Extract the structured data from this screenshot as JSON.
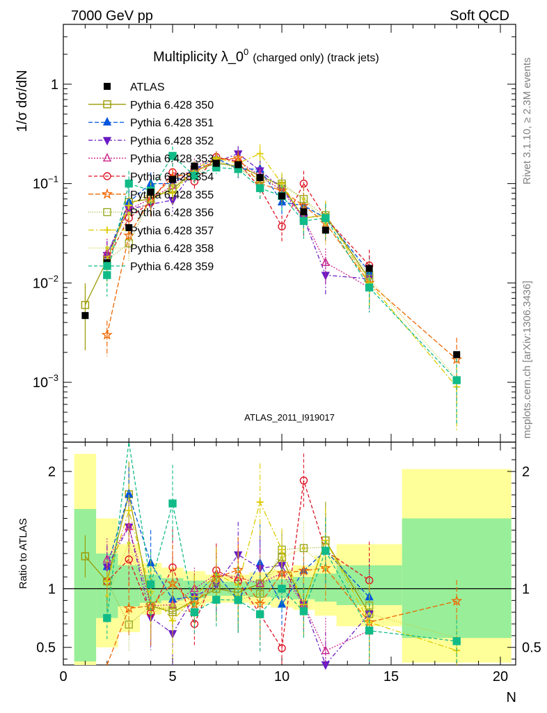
{
  "header": {
    "left": "7000 GeV pp",
    "right": "Soft QCD"
  },
  "side": {
    "top": "Rivet 3.1.10, ≥ 2.3M events",
    "bottom": "mcplots.cern.ch [arXiv:1306.3436]"
  },
  "watermark": "ATLAS_2011_I919017",
  "chart_data": [
    {
      "type": "scatter",
      "panel": "main",
      "title_main": "Multiplicity λ_0",
      "title_sup": "0",
      "title_small": "(charged only) (track jets)",
      "ylabel": "1/σ dσ/dN",
      "yscale": "log",
      "ylim": [
        0.00025,
        4
      ],
      "xlim": [
        0,
        20.7
      ],
      "yticks": [
        {
          "v": 0.001,
          "base": "10",
          "exp": "−3"
        },
        {
          "v": 0.01,
          "base": "10",
          "exp": "−2"
        },
        {
          "v": 0.1,
          "base": "10",
          "exp": "−1"
        },
        {
          "v": 1,
          "base": "1",
          "exp": ""
        }
      ],
      "legend_position": "top-left",
      "atlas": {
        "name": "ATLAS",
        "x": [
          1,
          2,
          3,
          4,
          5,
          6,
          7,
          8,
          9,
          10,
          11,
          12,
          14,
          18
        ],
        "y": [
          0.0047,
          0.016,
          0.036,
          0.082,
          0.11,
          0.15,
          0.16,
          0.155,
          0.115,
          0.075,
          0.052,
          0.034,
          0.014,
          0.0019
        ]
      },
      "series": [
        {
          "name": "Pythia 6.428 350",
          "color": "#999900",
          "marker": "square-open",
          "dash": "",
          "y": [
            0.006,
            0.017,
            0.065,
            0.07,
            0.088,
            0.135,
            0.16,
            0.15,
            0.12,
            0.095,
            0.045,
            0.048,
            0.011,
            null
          ]
        },
        {
          "name": "Pythia 6.428 351",
          "color": "#0055dd",
          "marker": "triangle-up",
          "dash": "6,3",
          "y": [
            null,
            0.019,
            0.065,
            0.1,
            0.1,
            0.14,
            0.18,
            0.14,
            0.14,
            0.065,
            0.06,
            0.045,
            0.013,
            null
          ]
        },
        {
          "name": "Pythia 6.428 352",
          "color": "#6a1bc4",
          "marker": "triangle-down",
          "dash": "6,3,2,3",
          "y": [
            null,
            0.019,
            0.055,
            0.062,
            0.068,
            0.14,
            0.165,
            0.2,
            0.135,
            0.09,
            0.045,
            0.012,
            0.011,
            null
          ]
        },
        {
          "name": "Pythia 6.428 353",
          "color": "#cc2288",
          "marker": "triangle-up-open",
          "dash": "2,2",
          "y": [
            null,
            0.02,
            0.055,
            0.07,
            0.095,
            0.15,
            0.18,
            0.17,
            0.12,
            0.085,
            0.045,
            0.016,
            0.009,
            null
          ]
        },
        {
          "name": "Pythia 6.428 354",
          "color": "#dd1122",
          "marker": "circle-open",
          "dash": "5,3",
          "y": [
            null,
            0.017,
            0.045,
            0.065,
            0.13,
            0.105,
            0.185,
            0.165,
            0.09,
            0.037,
            0.1,
            0.045,
            0.015,
            null
          ]
        },
        {
          "name": "Pythia 6.428 355",
          "color": "#ee6600",
          "marker": "star",
          "dash": "7,3",
          "y": [
            null,
            0.003,
            0.03,
            0.07,
            0.115,
            0.13,
            0.175,
            0.18,
            0.1,
            0.085,
            0.06,
            0.04,
            0.01,
            0.0017
          ]
        },
        {
          "name": "Pythia 6.428 356",
          "color": "#99aa22",
          "marker": "square-open",
          "dash": "1,2",
          "y": [
            null,
            0.017,
            0.025,
            0.07,
            0.09,
            0.12,
            0.17,
            0.14,
            0.11,
            0.1,
            0.07,
            0.046,
            0.012,
            null
          ]
        },
        {
          "name": "Pythia 6.428 357",
          "color": "#ddcc00",
          "marker": "cross",
          "dash": "8,3,2,3",
          "y": [
            null,
            0.017,
            0.06,
            0.08,
            0.08,
            0.14,
            0.18,
            0.16,
            0.2,
            0.1,
            0.045,
            0.048,
            0.01,
            0.0009
          ]
        },
        {
          "name": "Pythia 6.428 358",
          "color": "#cccc33",
          "marker": "dot",
          "dash": "1,2",
          "y": [
            null,
            0.015,
            0.05,
            0.065,
            0.095,
            0.13,
            0.17,
            0.145,
            0.11,
            0.095,
            0.07,
            0.04,
            0.011,
            0.0011
          ]
        },
        {
          "name": "Pythia 6.428 359",
          "color": "#11bb88",
          "marker": "square",
          "dash": "5,3",
          "y": [
            null,
            0.012,
            0.1,
            0.085,
            0.19,
            0.12,
            0.145,
            0.14,
            0.09,
            0.075,
            0.042,
            0.045,
            0.009,
            0.00105
          ]
        }
      ]
    },
    {
      "type": "scatter",
      "panel": "ratio",
      "ylabel": "Ratio to ATLAS",
      "xlabel": "N",
      "ylim": [
        0.35,
        2.25
      ],
      "xlim": [
        0,
        20.7
      ],
      "yticks": [
        0.5,
        1,
        2
      ],
      "xticks": [
        0,
        5,
        10,
        15,
        20
      ],
      "reference": 1,
      "bands": [
        {
          "x0": 0.5,
          "x1": 1.5,
          "g": [
            0.38,
            1.68
          ],
          "y": [
            0.35,
            2.15
          ]
        },
        {
          "x0": 1.5,
          "x1": 2.5,
          "g": [
            0.75,
            1.3
          ],
          "y": [
            0.5,
            1.6
          ]
        },
        {
          "x0": 2.5,
          "x1": 3.5,
          "g": [
            0.85,
            1.2
          ],
          "y": [
            0.63,
            1.38
          ]
        },
        {
          "x0": 3.5,
          "x1": 4.5,
          "g": [
            0.88,
            1.12
          ],
          "y": [
            0.78,
            1.22
          ]
        },
        {
          "x0": 4.5,
          "x1": 5.5,
          "g": [
            0.9,
            1.09
          ],
          "y": [
            0.82,
            1.18
          ]
        },
        {
          "x0": 5.5,
          "x1": 6.5,
          "g": [
            0.92,
            1.07
          ],
          "y": [
            0.85,
            1.15
          ]
        },
        {
          "x0": 6.5,
          "x1": 7.5,
          "g": [
            0.94,
            1.06
          ],
          "y": [
            0.88,
            1.12
          ]
        },
        {
          "x0": 7.5,
          "x1": 8.5,
          "g": [
            0.94,
            1.06
          ],
          "y": [
            0.88,
            1.12
          ]
        },
        {
          "x0": 8.5,
          "x1": 9.5,
          "g": [
            0.93,
            1.07
          ],
          "y": [
            0.86,
            1.14
          ]
        },
        {
          "x0": 9.5,
          "x1": 10.5,
          "g": [
            0.92,
            1.08
          ],
          "y": [
            0.84,
            1.16
          ]
        },
        {
          "x0": 10.5,
          "x1": 11.5,
          "g": [
            0.91,
            1.1
          ],
          "y": [
            0.82,
            1.2
          ]
        },
        {
          "x0": 11.5,
          "x1": 12.5,
          "g": [
            0.89,
            1.13
          ],
          "y": [
            0.77,
            1.28
          ]
        },
        {
          "x0": 12.5,
          "x1": 15.5,
          "g": [
            0.86,
            1.2
          ],
          "y": [
            0.68,
            1.38
          ]
        },
        {
          "x0": 15.5,
          "x1": 20.5,
          "g": [
            0.58,
            1.6
          ],
          "y": [
            0.37,
            2.02
          ]
        }
      ]
    }
  ]
}
